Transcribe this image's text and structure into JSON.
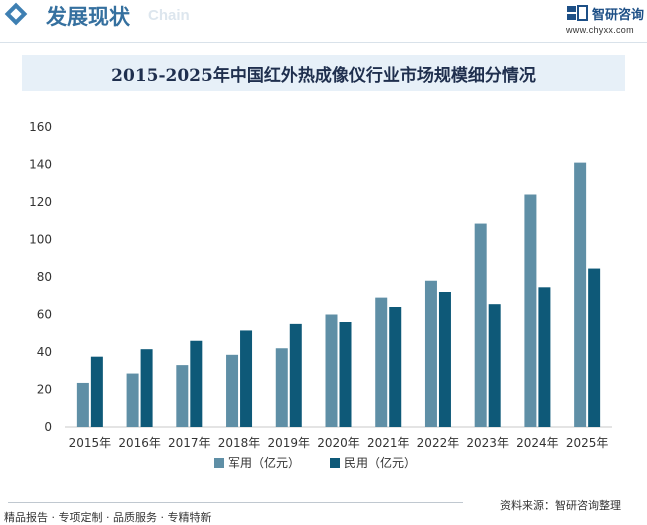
{
  "header": {
    "title": "发展现状",
    "subtitle": "Chain",
    "brand_name": "智研咨询",
    "brand_url": "www.chyxx.com"
  },
  "footer": {
    "left_text": "精品报告 · 专项定制 · 品质服务 · 专精特新",
    "source_text": "资料来源：智研咨询整理"
  },
  "colors": {
    "military": "#5f8fa6",
    "civil": "#0e5978",
    "header_accent": "#35709f"
  },
  "chart_data": {
    "type": "bar",
    "title": "2015-2025年中国红外热成像仪行业市场规模细分情况",
    "categories": [
      "2015年",
      "2016年",
      "2017年",
      "2018年",
      "2019年",
      "2020年",
      "2021年",
      "2022年",
      "2023年",
      "2024年",
      "2025年"
    ],
    "series": [
      {
        "name": "军用（亿元）",
        "values": [
          23.5,
          28.5,
          33,
          38.5,
          42,
          60,
          69,
          78,
          108.5,
          124,
          141
        ]
      },
      {
        "name": "民用（亿元）",
        "values": [
          37.5,
          41.5,
          46,
          51.5,
          55,
          56,
          64,
          72,
          65.5,
          74.5,
          84.5
        ]
      }
    ],
    "yticks": [
      0,
      20,
      40,
      60,
      80,
      100,
      120,
      140,
      160
    ],
    "ylim": [
      0,
      160
    ],
    "grid": false,
    "legend_position": "bottom"
  }
}
